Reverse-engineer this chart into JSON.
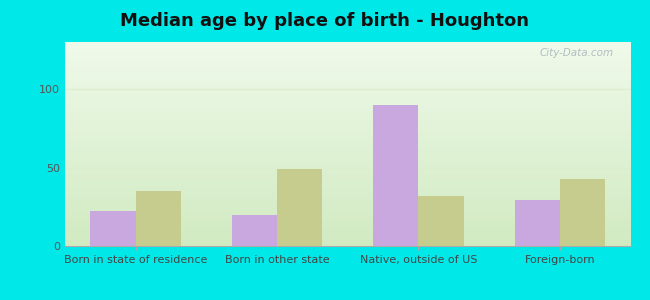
{
  "title": "Median age by place of birth - Houghton",
  "categories": [
    "Born in state of residence",
    "Born in other state",
    "Native, outside of US",
    "Foreign-born"
  ],
  "houghton_values": [
    22,
    20,
    90,
    29
  ],
  "michigan_values": [
    35,
    49,
    32,
    43
  ],
  "houghton_color": "#c9a8df",
  "michigan_color": "#c5cc8e",
  "ylim": [
    0,
    130
  ],
  "yticks": [
    0,
    50,
    100
  ],
  "background_color": "#00e8e8",
  "bar_width": 0.32,
  "title_fontsize": 13,
  "tick_fontsize": 8,
  "legend_fontsize": 9,
  "watermark": "City-Data.com",
  "grid_color": "#e0ecd0",
  "plot_bg_color_top": "#e8f5e0",
  "plot_bg_color_bottom": "#d8eecc"
}
